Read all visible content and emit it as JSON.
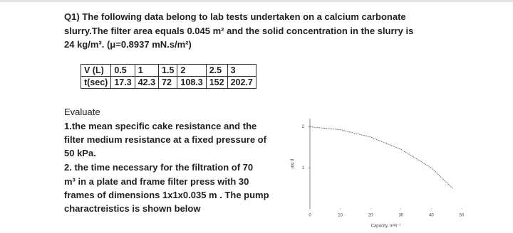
{
  "question": {
    "lines": [
      "Q1) The following data belong to lab tests undertaken on a calcium carbonate",
      "slurry.The filter area equals 0.045 m² and the solid concentration in the slurry is",
      "24 kg/m³. (μ=0.8937 mN.s/m²)"
    ]
  },
  "table": {
    "rows": [
      [
        "V (L)",
        "0.5",
        "1",
        "1.5",
        "2",
        "2.5",
        "3"
      ],
      [
        "t(sec)",
        "17.3",
        "42.3",
        "72",
        "108.3",
        "152",
        "202.7"
      ]
    ]
  },
  "evaluate": {
    "lines": [
      "Evaluate",
      "1.the mean specific cake resistance and the",
      "filter medium resistance at a fixed pressure of",
      "50 kPa.",
      "2. the time necessary for the filtration of 70",
      "m³ in a plate and frame filter press with 30",
      "frames of dimensions 1x1x0.035 m . The pump",
      "charactreistics is shown below"
    ]
  },
  "chart_data": {
    "type": "line",
    "x_label": "Capacity, m³h⁻¹",
    "y_label": "p bar",
    "x": [
      0,
      10,
      20,
      30,
      40,
      47
    ],
    "series": [
      {
        "values": [
          2.0,
          1.93,
          1.75,
          1.45,
          1.0,
          0.5
        ],
        "color": "#444444"
      }
    ],
    "xlim": [
      0,
      50
    ],
    "xticks": [
      0,
      10,
      20,
      30,
      40,
      50
    ],
    "ylim": [
      0,
      2.2
    ],
    "yticks": [
      1,
      2
    ]
  }
}
